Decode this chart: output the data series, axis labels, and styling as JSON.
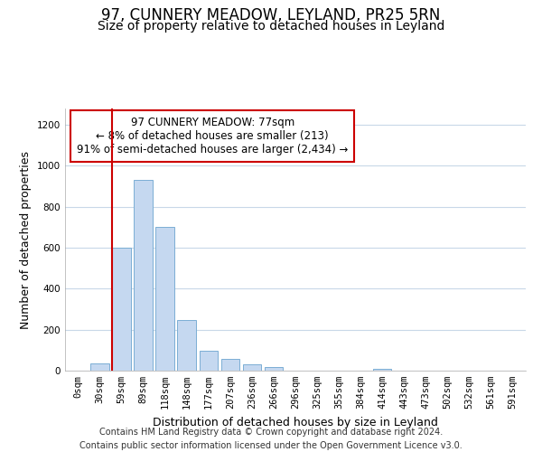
{
  "title": "97, CUNNERY MEADOW, LEYLAND, PR25 5RN",
  "subtitle": "Size of property relative to detached houses in Leyland",
  "xlabel": "Distribution of detached houses by size in Leyland",
  "ylabel": "Number of detached properties",
  "bar_labels": [
    "0sqm",
    "30sqm",
    "59sqm",
    "89sqm",
    "118sqm",
    "148sqm",
    "177sqm",
    "207sqm",
    "236sqm",
    "266sqm",
    "296sqm",
    "325sqm",
    "355sqm",
    "384sqm",
    "414sqm",
    "443sqm",
    "473sqm",
    "502sqm",
    "532sqm",
    "561sqm",
    "591sqm"
  ],
  "bar_values": [
    0,
    37,
    600,
    930,
    700,
    248,
    97,
    57,
    30,
    18,
    0,
    0,
    0,
    0,
    8,
    0,
    0,
    0,
    0,
    0,
    0
  ],
  "bar_color": "#c5d8f0",
  "bar_edge_color": "#7baed4",
  "vline_bar_index": 2,
  "vline_color": "#cc0000",
  "annotation_title": "97 CUNNERY MEADOW: 77sqm",
  "annotation_line1": "← 8% of detached houses are smaller (213)",
  "annotation_line2": "91% of semi-detached houses are larger (2,434) →",
  "annotation_box_color": "#ffffff",
  "annotation_box_edge_color": "#cc0000",
  "ylim": [
    0,
    1280
  ],
  "yticks": [
    0,
    200,
    400,
    600,
    800,
    1000,
    1200
  ],
  "footer_line1": "Contains HM Land Registry data © Crown copyright and database right 2024.",
  "footer_line2": "Contains public sector information licensed under the Open Government Licence v3.0.",
  "title_fontsize": 12,
  "subtitle_fontsize": 10,
  "axis_label_fontsize": 9,
  "tick_fontsize": 7.5,
  "annotation_fontsize": 8.5,
  "footer_fontsize": 7,
  "bg_color": "#ffffff",
  "grid_color": "#c8d8e8"
}
